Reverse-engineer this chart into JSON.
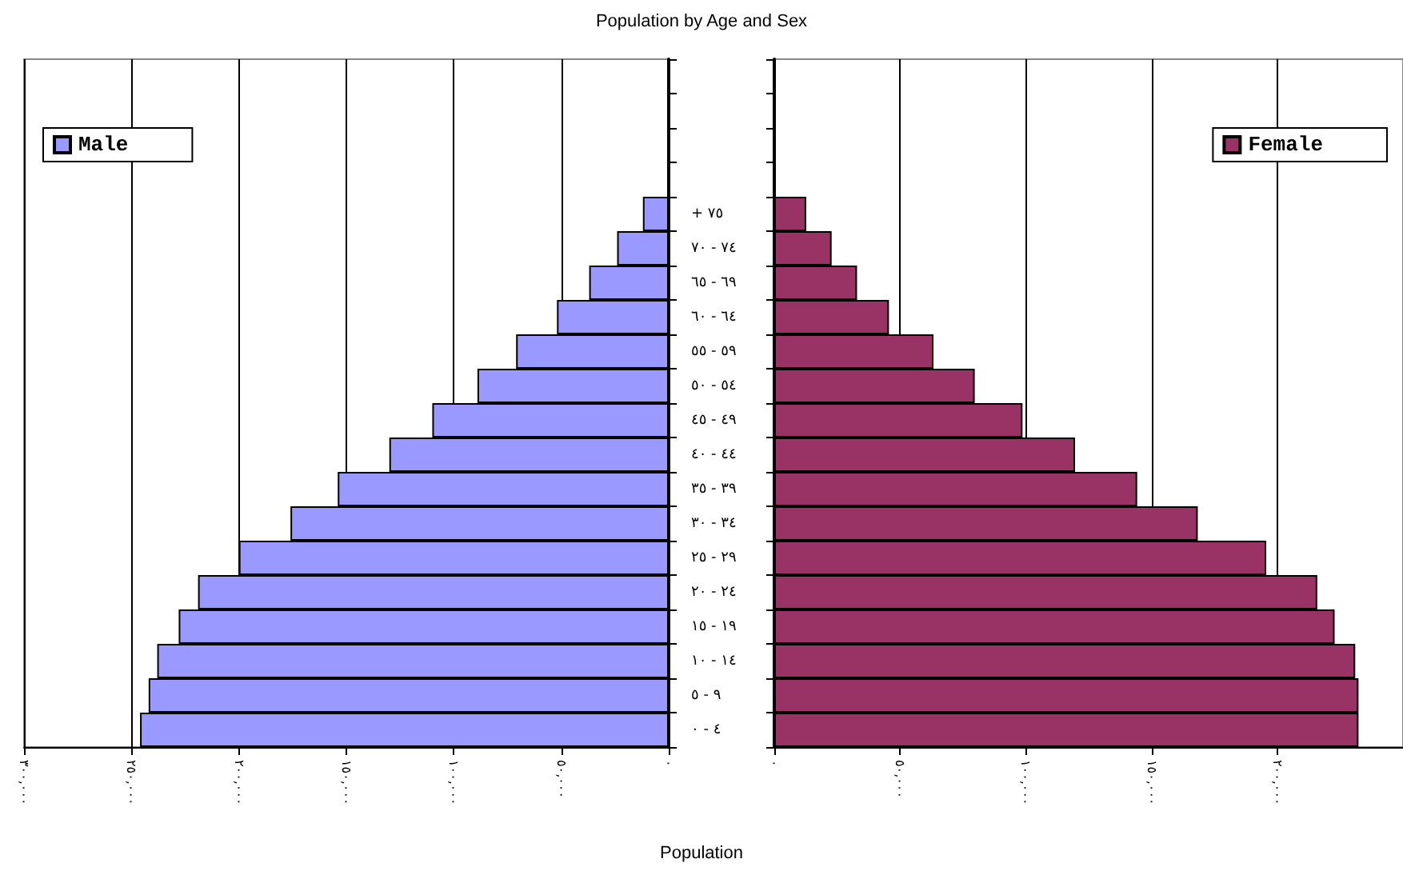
{
  "chart_data": [
    {
      "type": "bar",
      "orientation": "horizontal",
      "title": "Population by Age and Sex",
      "categories": [
        null,
        null,
        null,
        null,
        "+ ٧٥",
        "٧٤ - ٧٠",
        "٦٩ - ٦٥",
        "٦٤ - ٦٠",
        "٥٩ - ٥٥",
        "٥٤ - ٥٠",
        "٤٩ - ٤٥",
        "٤٤ - ٤٠",
        "٣٩ - ٣٥",
        "٣٤ - ٣٠",
        "٢٩ - ٢٥",
        "٢٤ - ٢٠",
        "١٩ - ١٥",
        "١٤ - ١٠",
        "٩ - ٥",
        "٤ - ٠"
      ],
      "series": [
        {
          "name": "Male",
          "color": "#9999ff",
          "values": [
            null,
            null,
            null,
            null,
            12000,
            24000,
            37000,
            52000,
            71000,
            89000,
            110000,
            130000,
            154000,
            176000,
            200000,
            219000,
            228000,
            238000,
            242000,
            246000
          ]
        }
      ],
      "xlim": [
        300000,
        0
      ],
      "xticks": [
        {
          "value": 300000,
          "label": "٣٠٠,٠٠٠"
        },
        {
          "value": 250000,
          "label": "٢٥٠,٠٠٠"
        },
        {
          "value": 200000,
          "label": "٢٠٠,٠٠٠"
        },
        {
          "value": 150000,
          "label": "١٥٠,٠٠٠"
        },
        {
          "value": 100000,
          "label": "١٠٠,٠٠٠"
        },
        {
          "value": 50000,
          "label": "٥٠,٠٠٠"
        },
        {
          "value": 0,
          "label": "٠"
        }
      ],
      "grid": "x",
      "legend": "top left"
    },
    {
      "type": "bar",
      "orientation": "horizontal",
      "xlabel": "Population",
      "categories": [
        null,
        null,
        null,
        null,
        null,
        null,
        null,
        null,
        null,
        null,
        null,
        null,
        null,
        null,
        null,
        null,
        null,
        null,
        null,
        null
      ],
      "series": [
        {
          "name": "Female",
          "color": "#993366",
          "values": [
            null,
            null,
            null,
            null,
            12700,
            22800,
            32900,
            45600,
            63300,
            79700,
            98700,
            119600,
            144300,
            168400,
            195600,
            215900,
            222800,
            231000,
            232300,
            232300
          ]
        }
      ],
      "xlim": [
        0,
        250000
      ],
      "xticks": [
        {
          "value": 0,
          "label": "٠"
        },
        {
          "value": 50000,
          "label": "٥٠,٠٠٠"
        },
        {
          "value": 100000,
          "label": "١٠٠,٠٠٠"
        },
        {
          "value": 150000,
          "label": "١٥٠,٠٠٠"
        },
        {
          "value": 200000,
          "label": "٢٠٠,٠٠٠"
        }
      ],
      "grid": "x",
      "legend": "top right"
    }
  ]
}
